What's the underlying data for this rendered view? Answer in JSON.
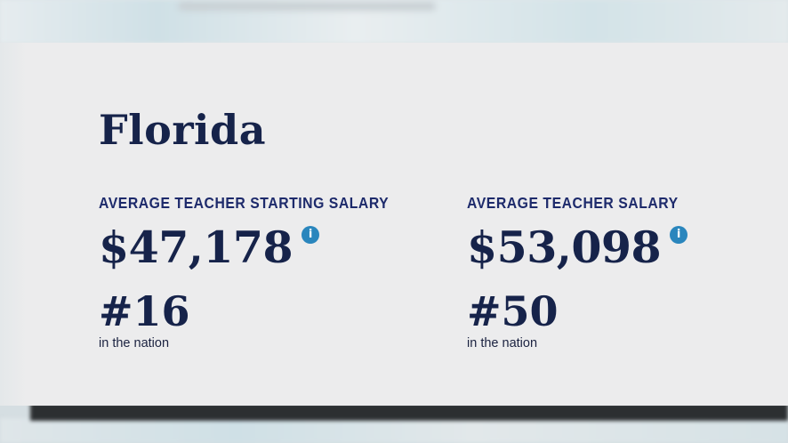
{
  "state": {
    "name": "Florida"
  },
  "stats": [
    {
      "label": "AVERAGE TEACHER STARTING SALARY",
      "value": "$47,178",
      "info_icon": "info-icon",
      "rank": "#16",
      "rank_caption": "in the nation"
    },
    {
      "label": "AVERAGE TEACHER SALARY",
      "value": "$53,098",
      "info_icon": "info-icon",
      "rank": "#50",
      "rank_caption": "in the nation"
    }
  ],
  "icons": {
    "info_glyph": "i"
  },
  "colors": {
    "heading_navy": "#16234a",
    "label_blue": "#1d2a6b",
    "info_icon_blue": "#2a86bd",
    "card_background": "#ececed"
  }
}
